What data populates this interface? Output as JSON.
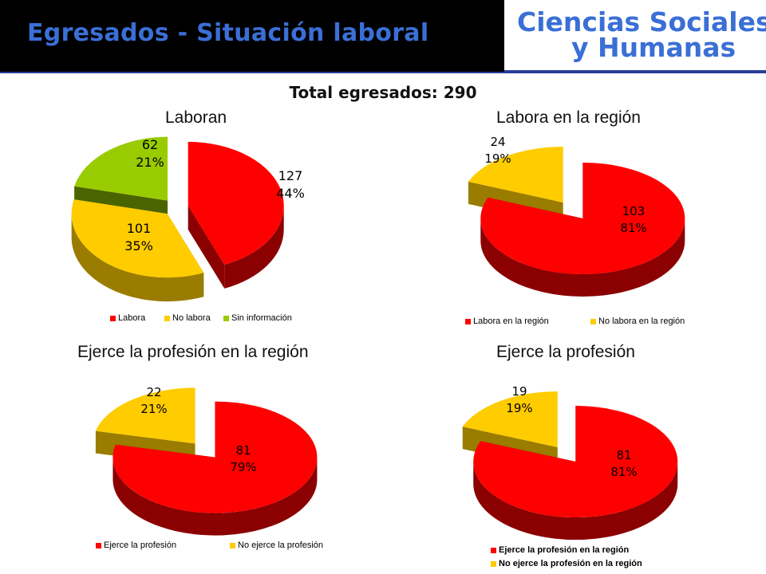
{
  "header": {
    "title": "Egresados  - Situación laboral",
    "logo_line1": "Ciencias Sociales",
    "logo_line2": "y Humanas"
  },
  "total_label": "Total egresados: 290",
  "colors": {
    "red": "#ff0000",
    "red_side": "#8b0000",
    "yellow": "#ffcc00",
    "yellow_side": "#9a7c00",
    "green": "#99cc00",
    "green_side": "#4a6400"
  },
  "chart_data": [
    {
      "type": "pie",
      "title": "Laboran",
      "categories": [
        "Labora",
        "No labora",
        "Sin información"
      ],
      "values": [
        127,
        101,
        62
      ],
      "percent_labels": [
        "44%",
        "35%",
        "21%"
      ],
      "legend": "bottom",
      "exploded": true
    },
    {
      "type": "pie",
      "title": "Labora en la región",
      "categories": [
        "Labora en la región",
        "No labora en la región"
      ],
      "values": [
        103,
        24
      ],
      "percent_labels": [
        "81%",
        "19%"
      ],
      "legend": "bottom",
      "exploded": true
    },
    {
      "type": "pie",
      "title": "Ejerce la profesión en la región",
      "categories": [
        "Ejerce la profesión",
        "No ejerce la profesión"
      ],
      "values": [
        81,
        22
      ],
      "percent_labels": [
        "79%",
        "21%"
      ],
      "legend": "bottom",
      "exploded": true
    },
    {
      "type": "pie",
      "title": "Ejerce la profesión",
      "categories": [
        "Ejerce la profesión en la región",
        "No ejerce la profesión en la región"
      ],
      "values": [
        81,
        19
      ],
      "percent_labels": [
        "81%",
        "19%"
      ],
      "legend": "bottom",
      "exploded": true
    }
  ]
}
